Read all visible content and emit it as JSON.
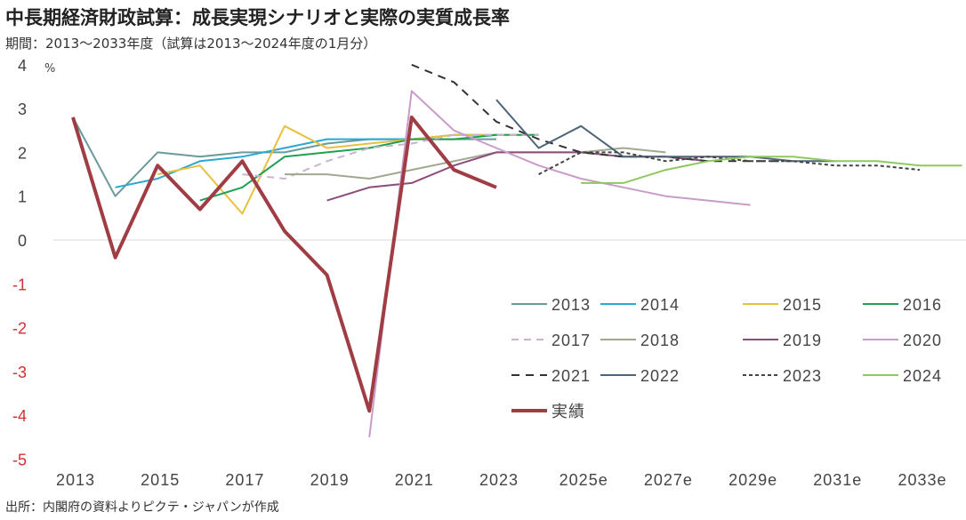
{
  "title": "中長期経済財政試算：成長実現シナリオと実際の実質成長率",
  "subtitle": "期間：2013～2033年度（試算は2013～2024年度の1月分）",
  "source": "出所：内閣府の資料よりピクテ・ジャパンが作成",
  "chart_data": {
    "type": "line",
    "title": "中長期経済財政試算：成長実現シナリオと実際の実質成長率",
    "ylabel": "%",
    "ylim": [
      -5,
      4
    ],
    "xlim": [
      2013,
      2034
    ],
    "yticks": [
      4,
      3,
      2,
      1,
      0,
      -1,
      -2,
      -3,
      -4,
      -5
    ],
    "xticks": [
      {
        "x": 2013,
        "label": "2013"
      },
      {
        "x": 2015,
        "label": "2015"
      },
      {
        "x": 2017,
        "label": "2017"
      },
      {
        "x": 2019,
        "label": "2019"
      },
      {
        "x": 2021,
        "label": "2021"
      },
      {
        "x": 2023,
        "label": "2023"
      },
      {
        "x": 2025,
        "label": "2025e"
      },
      {
        "x": 2027,
        "label": "2027e"
      },
      {
        "x": 2029,
        "label": "2029e"
      },
      {
        "x": 2031,
        "label": "2031e"
      },
      {
        "x": 2033,
        "label": "2033e"
      }
    ],
    "negative_tick_color": "#d03030",
    "grid": false,
    "legend": "bottom-right",
    "series": [
      {
        "name": "2013",
        "color": "#6a9a9c",
        "dash": "",
        "start": 2013,
        "values": [
          2.8,
          1.0,
          2.0,
          1.9,
          2.0,
          2.0,
          2.2,
          2.3,
          2.3,
          2.3,
          2.3
        ]
      },
      {
        "name": "2014",
        "color": "#2ba8d0",
        "dash": "",
        "start": 2014,
        "values": [
          1.2,
          1.4,
          1.8,
          1.9,
          2.1,
          2.3,
          2.3,
          2.3,
          2.4,
          2.4
        ]
      },
      {
        "name": "2015",
        "color": "#e8c040",
        "dash": "",
        "start": 2015,
        "values": [
          1.5,
          1.7,
          0.6,
          2.6,
          2.1,
          2.2,
          2.3,
          2.4,
          2.4,
          2.4
        ]
      },
      {
        "name": "2016",
        "color": "#20a050",
        "dash": "",
        "start": 2016,
        "values": [
          0.9,
          1.2,
          1.9,
          2.0,
          2.1,
          2.3,
          2.3,
          2.4,
          2.4
        ]
      },
      {
        "name": "2017",
        "color": "#c8b4cc",
        "dash": "8,6",
        "start": 2017,
        "values": [
          1.5,
          1.4,
          1.8,
          2.1,
          2.2,
          2.4,
          2.4,
          2.4
        ]
      },
      {
        "name": "2018",
        "color": "#a0a890",
        "dash": "",
        "start": 2018,
        "values": [
          1.5,
          1.5,
          1.4,
          1.6,
          1.8,
          2.0,
          2.0,
          2.0,
          2.1,
          2.0
        ]
      },
      {
        "name": "2019",
        "color": "#8c4c7c",
        "dash": "",
        "start": 2019,
        "values": [
          0.9,
          1.2,
          1.3,
          1.7,
          2.0,
          2.0,
          2.0,
          1.9,
          1.9,
          1.8
        ]
      },
      {
        "name": "2020",
        "color": "#c89cc8",
        "dash": "",
        "start": 2020,
        "values": [
          -4.5,
          3.4,
          2.5,
          2.1,
          1.7,
          1.4,
          1.2,
          1.0,
          0.9,
          0.8
        ]
      },
      {
        "name": "2021",
        "color": "#333333",
        "dash": "9,7",
        "start": 2021,
        "values": [
          4.0,
          3.6,
          2.7,
          2.3,
          2.0,
          1.9,
          1.9,
          1.8,
          1.8,
          1.8
        ]
      },
      {
        "name": "2022",
        "color": "#4e6478",
        "dash": "",
        "start": 2023,
        "values": [
          3.2,
          2.1,
          2.6,
          1.9,
          1.9,
          1.9,
          1.9,
          1.8,
          1.8
        ]
      },
      {
        "name": "2023",
        "color": "#444444",
        "dash": "4,3",
        "start": 2024,
        "values": [
          1.5,
          2.0,
          2.0,
          1.8,
          1.9,
          1.8,
          1.8,
          1.7,
          1.7,
          1.6
        ]
      },
      {
        "name": "2024",
        "color": "#90c860",
        "dash": "",
        "start": 2025,
        "values": [
          1.3,
          1.3,
          1.6,
          1.8,
          1.9,
          1.9,
          1.8,
          1.8,
          1.7,
          1.7
        ]
      },
      {
        "name": "実績",
        "color": "#a03c44",
        "dash": "",
        "width": 4,
        "start": 2013,
        "values": [
          2.8,
          -0.4,
          1.7,
          0.7,
          1.8,
          0.2,
          -0.8,
          -3.9,
          2.8,
          1.6,
          1.2
        ]
      }
    ]
  }
}
